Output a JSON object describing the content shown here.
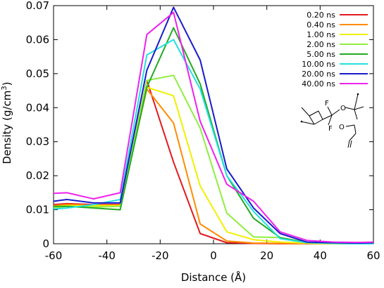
{
  "chart_data": {
    "type": "line",
    "title": "",
    "xlabel": "Distance (Å)",
    "ylabel_prefix": "Density (g/cm",
    "ylabel_sup": "3",
    "ylabel_suffix": ")",
    "xlim": [
      -60,
      60
    ],
    "ylim": [
      0,
      0.07
    ],
    "x_ticks": [
      -60,
      -40,
      -20,
      0,
      20,
      40,
      60
    ],
    "x_tick_labels": [
      "-60",
      "-40",
      "-20",
      "0",
      "20",
      "40",
      "60"
    ],
    "y_ticks": [
      0,
      0.01,
      0.02,
      0.03,
      0.04,
      0.05,
      0.06,
      0.07
    ],
    "y_tick_labels": [
      "0",
      "0.01",
      "0.02",
      "0.03",
      "0.04",
      "0.05",
      "0.06",
      "0.07"
    ],
    "grid": false,
    "legend_position": "top-right",
    "series": [
      {
        "name": "0.20 ns",
        "color": "#e41a1c",
        "x": [
          -60,
          -55,
          -45,
          -35,
          -25,
          -15,
          -5,
          5,
          15,
          25,
          35,
          45,
          55,
          60
        ],
        "y": [
          0.0115,
          0.0118,
          0.0115,
          0.0115,
          0.048,
          0.024,
          0.003,
          0.0003,
          0.0001,
          0,
          0,
          0,
          0,
          0
        ]
      },
      {
        "name": "0.40 ns",
        "color": "#ff8c00",
        "x": [
          -60,
          -55,
          -45,
          -35,
          -25,
          -15,
          -5,
          5,
          15,
          25,
          35,
          45,
          55,
          60
        ],
        "y": [
          0.0112,
          0.0115,
          0.0113,
          0.0113,
          0.0455,
          0.0355,
          0.0058,
          0.0008,
          0.0002,
          0.0001,
          0,
          0,
          0,
          0
        ]
      },
      {
        "name": "1.00 ns",
        "color": "#f0f000",
        "x": [
          -60,
          -55,
          -45,
          -35,
          -25,
          -15,
          -5,
          5,
          15,
          25,
          35,
          45,
          55,
          60
        ],
        "y": [
          0.011,
          0.0112,
          0.0112,
          0.0112,
          0.046,
          0.0435,
          0.017,
          0.0035,
          0.0012,
          0.0005,
          0.0002,
          0,
          0,
          0
        ]
      },
      {
        "name": "2.00 ns",
        "color": "#90ee40",
        "x": [
          -60,
          -55,
          -45,
          -35,
          -25,
          -15,
          -5,
          5,
          15,
          25,
          35,
          45,
          55,
          60
        ],
        "y": [
          0.0105,
          0.011,
          0.0108,
          0.011,
          0.048,
          0.0495,
          0.034,
          0.009,
          0.002,
          0.0018,
          0.0004,
          0.0001,
          0,
          0
        ]
      },
      {
        "name": "5.00 ns",
        "color": "#22aa22",
        "x": [
          -60,
          -55,
          -45,
          -35,
          -25,
          -15,
          -5,
          5,
          15,
          25,
          35,
          45,
          55,
          60
        ],
        "y": [
          0.011,
          0.011,
          0.0105,
          0.01,
          0.046,
          0.0635,
          0.047,
          0.02,
          0.0075,
          0.0018,
          0.0004,
          0.0001,
          0,
          0
        ]
      },
      {
        "name": "10.00 ns",
        "color": "#22e0e0",
        "x": [
          -60,
          -55,
          -45,
          -35,
          -25,
          -15,
          -5,
          5,
          15,
          25,
          35,
          45,
          55,
          60
        ],
        "y": [
          0.0102,
          0.0105,
          0.0115,
          0.013,
          0.0555,
          0.06,
          0.0455,
          0.02,
          0.0095,
          0.0015,
          0.0003,
          0.0001,
          0,
          0
        ]
      },
      {
        "name": "20.00 ns",
        "color": "#1a1acc",
        "x": [
          -60,
          -55,
          -45,
          -35,
          -25,
          -15,
          -5,
          5,
          15,
          25,
          35,
          45,
          55,
          60
        ],
        "y": [
          0.0125,
          0.013,
          0.012,
          0.012,
          0.051,
          0.0695,
          0.054,
          0.022,
          0.0105,
          0.003,
          0.0005,
          0.0003,
          0.0002,
          0.0003
        ]
      },
      {
        "name": "40.00 ns",
        "color": "#ee22ee",
        "x": [
          -60,
          -55,
          -45,
          -35,
          -25,
          -15,
          -5,
          5,
          15,
          25,
          35,
          45,
          55,
          60
        ],
        "y": [
          0.0148,
          0.015,
          0.0132,
          0.015,
          0.0615,
          0.068,
          0.036,
          0.0175,
          0.0125,
          0.0035,
          0.001,
          0.0005,
          0.0004,
          0.0005
        ]
      }
    ]
  },
  "molecule": {
    "atoms": [
      "F",
      "F",
      "O",
      "O"
    ],
    "colors": {
      "F": "#22c0c0",
      "O": "#e02020",
      "bond": "#000000"
    }
  }
}
